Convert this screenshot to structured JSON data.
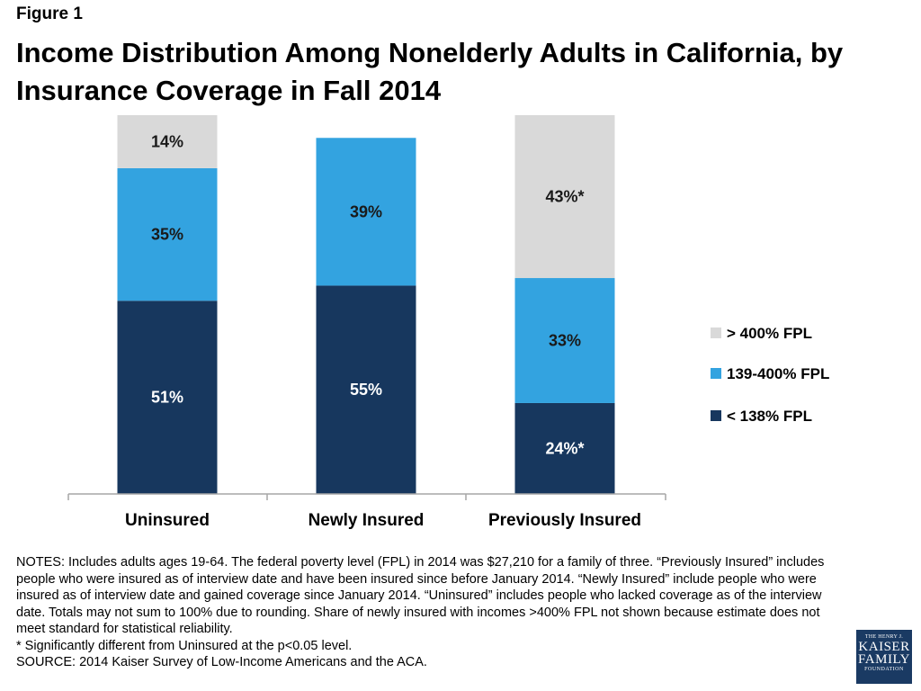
{
  "figure_label": "Figure 1",
  "title": "Income Distribution Among Nonelderly Adults in California, by Insurance Coverage in Fall 2014",
  "colors": {
    "above_400": "#d9d9d9",
    "fpl_139_400": "#33a3e0",
    "below_138": "#17375e"
  },
  "chart_data": {
    "type": "bar",
    "stacked": true,
    "title": "Income Distribution Among Nonelderly Adults in California, by Insurance Coverage in Fall 2014",
    "categories": [
      "Uninsured",
      "Newly Insured",
      "Previously Insured"
    ],
    "series": [
      {
        "name": "< 138% FPL",
        "values": [
          51,
          55,
          24
        ],
        "labels": [
          "51%",
          "55%",
          "24%*"
        ],
        "color": "#17375e",
        "label_color": "#ffffff"
      },
      {
        "name": "139-400% FPL",
        "values": [
          35,
          39,
          33
        ],
        "labels": [
          "35%",
          "39%",
          "33%"
        ],
        "color": "#33a3e0",
        "label_color": "#1a1a1a"
      },
      {
        "name": "> 400% FPL",
        "values": [
          14,
          null,
          43
        ],
        "labels": [
          "14%",
          "",
          "43%*"
        ],
        "color": "#d9d9d9",
        "label_color": "#1a1a1a"
      }
    ],
    "legend_order": [
      "> 400% FPL",
      "139-400% FPL",
      "< 138% FPL"
    ],
    "legend_position": "right",
    "ylim": [
      0,
      100
    ],
    "grid": false
  },
  "notes": {
    "main": "NOTES: Includes adults ages 19-64. The federal poverty level (FPL) in 2014 was $27,210 for a family of three. “Previously Insured” includes people who were insured as of interview date and have been insured since before January 2014. “Newly Insured” include people who were insured as of interview date and gained coverage since January 2014. “Uninsured” includes people who lacked coverage as of the interview date. Totals may not sum to 100% due to rounding. Share of newly insured with incomes >400% FPL not shown because estimate does not meet standard for statistical reliability.",
    "significance": "* Significantly different from Uninsured at the p<0.05 level.",
    "source": "SOURCE: 2014 Kaiser Survey of Low-Income Americans and the ACA."
  },
  "logo": {
    "line1": "THE HENRY J.",
    "line2": "KAISER",
    "line3": "FAMILY",
    "line4": "FOUNDATION"
  }
}
